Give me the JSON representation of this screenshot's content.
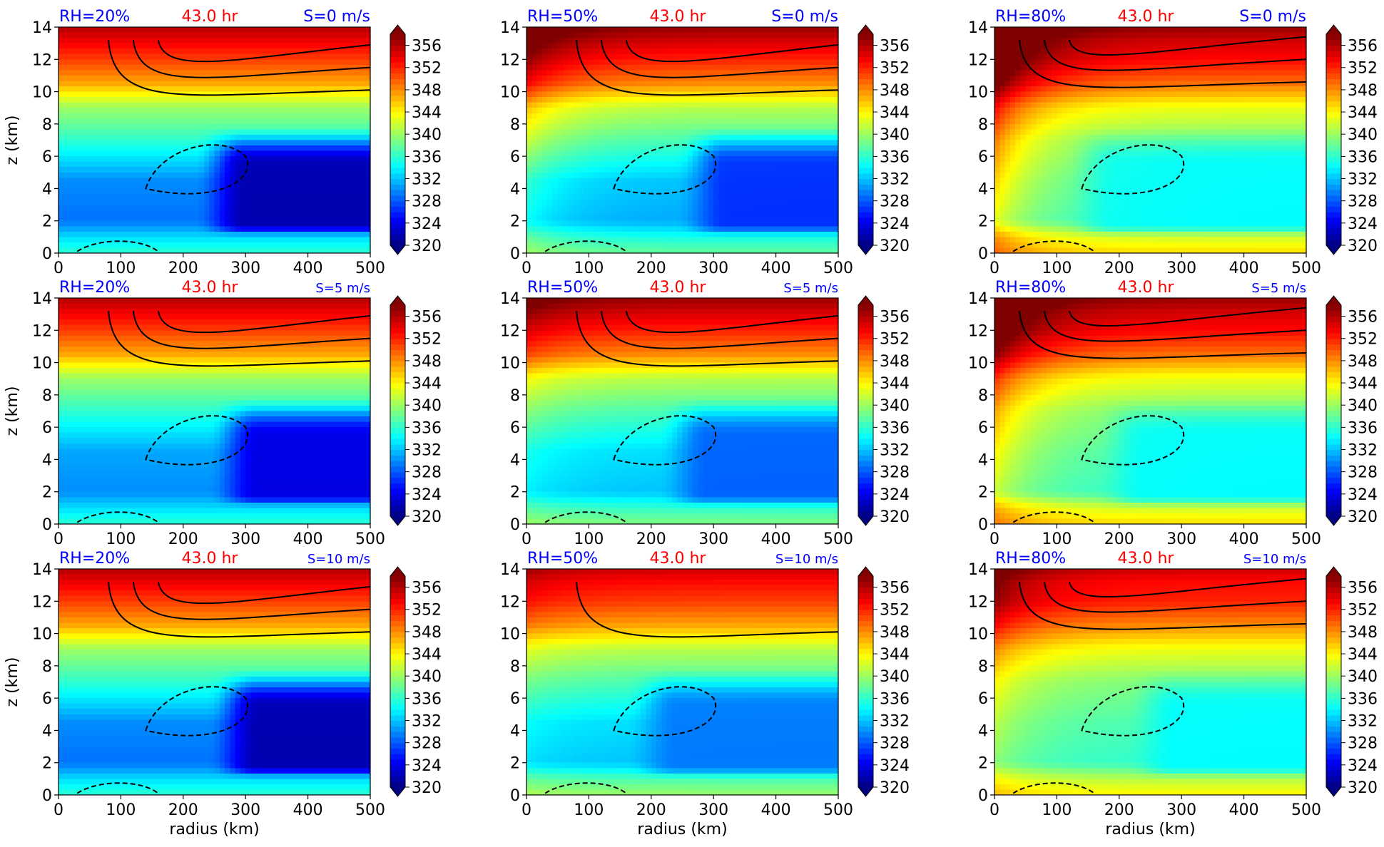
{
  "colors": {
    "rh_label": "#0000ff",
    "time_label": "#ff0000",
    "shear_label": "#0000ff",
    "contour": "#000000"
  },
  "colormap": "jet",
  "chart_data": [
    {
      "type": "heatmap",
      "rh": "RH=20%",
      "time": "43.0 hr",
      "shear": "S=0 m/s",
      "xlabel": "",
      "ylabel": "z (km)",
      "xlim": [
        0,
        500
      ],
      "ylim": [
        0,
        14
      ],
      "xticks": [
        0,
        100,
        200,
        300,
        400,
        500
      ],
      "yticks": [
        0,
        2,
        4,
        6,
        8,
        10,
        12,
        14
      ],
      "colorbar": {
        "min": 320,
        "max": 358,
        "ticks": [
          320,
          324,
          328,
          332,
          336,
          340,
          344,
          348,
          352,
          356
        ]
      },
      "field": {
        "surf": 336,
        "low": 329,
        "mid": 338,
        "upper": 349,
        "top": 356,
        "core_min": 321,
        "core_r": [
          260,
          500
        ],
        "inner_warm": 0
      }
    },
    {
      "type": "heatmap",
      "rh": "RH=50%",
      "time": "43.0 hr",
      "shear": "S=0 m/s",
      "xlabel": "",
      "ylabel": "",
      "xlim": [
        0,
        500
      ],
      "ylim": [
        0,
        14
      ],
      "xticks": [
        0,
        100,
        200,
        300,
        400,
        500
      ],
      "yticks": [
        0,
        2,
        4,
        6,
        8,
        10,
        12,
        14
      ],
      "colorbar": {
        "min": 320,
        "max": 358,
        "ticks": [
          320,
          324,
          328,
          332,
          336,
          340,
          344,
          348,
          352,
          356
        ]
      },
      "field": {
        "surf": 338,
        "low": 331,
        "mid": 339,
        "upper": 350,
        "top": 357,
        "core_min": 326,
        "core_r": [
          280,
          500
        ],
        "inner_warm": 6
      }
    },
    {
      "type": "heatmap",
      "rh": "RH=80%",
      "time": "43.0 hr",
      "shear": "S=0 m/s",
      "xlabel": "",
      "ylabel": "",
      "xlim": [
        0,
        500
      ],
      "ylim": [
        0,
        14
      ],
      "xticks": [
        0,
        100,
        200,
        300,
        400,
        500
      ],
      "yticks": [
        0,
        2,
        4,
        6,
        8,
        10,
        12,
        14
      ],
      "colorbar": {
        "min": 320,
        "max": 358,
        "ticks": [
          320,
          324,
          328,
          332,
          336,
          340,
          344,
          348,
          352,
          356
        ]
      },
      "field": {
        "surf": 345,
        "low": 336,
        "mid": 341,
        "upper": 351,
        "top": 357,
        "core_min": 334,
        "core_r": [
          150,
          500
        ],
        "inner_warm": 12
      }
    },
    {
      "type": "heatmap",
      "rh": "RH=20%",
      "time": "43.0 hr",
      "shear": "S=5 m/s",
      "xlabel": "",
      "ylabel": "z (km)",
      "xlim": [
        0,
        500
      ],
      "ylim": [
        0,
        14
      ],
      "xticks": [
        0,
        100,
        200,
        300,
        400,
        500
      ],
      "yticks": [
        0,
        2,
        4,
        6,
        8,
        10,
        12,
        14
      ],
      "colorbar": {
        "min": 320,
        "max": 358,
        "ticks": [
          320,
          324,
          328,
          332,
          336,
          340,
          344,
          348,
          352,
          356
        ]
      },
      "field": {
        "surf": 336,
        "low": 330,
        "mid": 338,
        "upper": 349,
        "top": 356,
        "core_min": 323,
        "core_r": [
          280,
          500
        ],
        "inner_warm": 0
      }
    },
    {
      "type": "heatmap",
      "rh": "RH=50%",
      "time": "43.0 hr",
      "shear": "S=5 m/s",
      "xlabel": "",
      "ylabel": "",
      "xlim": [
        0,
        500
      ],
      "ylim": [
        0,
        14
      ],
      "xticks": [
        0,
        100,
        200,
        300,
        400,
        500
      ],
      "yticks": [
        0,
        2,
        4,
        6,
        8,
        10,
        12,
        14
      ],
      "colorbar": {
        "min": 320,
        "max": 358,
        "ticks": [
          320,
          324,
          328,
          332,
          336,
          340,
          344,
          348,
          352,
          356
        ]
      },
      "field": {
        "surf": 339,
        "low": 332,
        "mid": 339,
        "upper": 350,
        "top": 357,
        "core_min": 328,
        "core_r": [
          250,
          500
        ],
        "inner_warm": 3
      }
    },
    {
      "type": "heatmap",
      "rh": "RH=80%",
      "time": "43.0 hr",
      "shear": "S=5 m/s",
      "xlabel": "",
      "ylabel": "",
      "xlim": [
        0,
        500
      ],
      "ylim": [
        0,
        14
      ],
      "xticks": [
        0,
        100,
        200,
        300,
        400,
        500
      ],
      "yticks": [
        0,
        2,
        4,
        6,
        8,
        10,
        12,
        14
      ],
      "colorbar": {
        "min": 320,
        "max": 358,
        "ticks": [
          320,
          324,
          328,
          332,
          336,
          340,
          344,
          348,
          352,
          356
        ]
      },
      "field": {
        "surf": 345,
        "low": 336,
        "mid": 341,
        "upper": 351,
        "top": 357,
        "core_min": 334,
        "core_r": [
          200,
          500
        ],
        "inner_warm": 10
      }
    },
    {
      "type": "heatmap",
      "rh": "RH=20%",
      "time": "43.0 hr",
      "shear": "S=10 m/s",
      "xlabel": "radius (km)",
      "ylabel": "z (km)",
      "xlim": [
        0,
        500
      ],
      "ylim": [
        0,
        14
      ],
      "xticks": [
        0,
        100,
        200,
        300,
        400,
        500
      ],
      "yticks": [
        0,
        2,
        4,
        6,
        8,
        10,
        12,
        14
      ],
      "colorbar": {
        "min": 320,
        "max": 358,
        "ticks": [
          320,
          324,
          328,
          332,
          336,
          340,
          344,
          348,
          352,
          356
        ]
      },
      "field": {
        "surf": 336,
        "low": 329,
        "mid": 338,
        "upper": 349,
        "top": 356,
        "core_min": 321,
        "core_r": [
          280,
          500
        ],
        "inner_warm": 0
      }
    },
    {
      "type": "heatmap",
      "rh": "RH=50%",
      "time": "43.0 hr",
      "shear": "S=10 m/s",
      "xlabel": "radius (km)",
      "ylabel": "",
      "xlim": [
        0,
        500
      ],
      "ylim": [
        0,
        14
      ],
      "xticks": [
        0,
        100,
        200,
        300,
        400,
        500
      ],
      "yticks": [
        0,
        2,
        4,
        6,
        8,
        10,
        12,
        14
      ],
      "colorbar": {
        "min": 320,
        "max": 358,
        "ticks": [
          320,
          324,
          328,
          332,
          336,
          340,
          344,
          348,
          352,
          356
        ]
      },
      "field": {
        "surf": 340,
        "low": 332,
        "mid": 339,
        "upper": 349,
        "top": 355,
        "core_min": 329,
        "core_r": [
          200,
          500
        ],
        "inner_warm": 2
      }
    },
    {
      "type": "heatmap",
      "rh": "RH=80%",
      "time": "43.0 hr",
      "shear": "S=10 m/s",
      "xlabel": "radius (km)",
      "ylabel": "",
      "xlim": [
        0,
        500
      ],
      "ylim": [
        0,
        14
      ],
      "xticks": [
        0,
        100,
        200,
        300,
        400,
        500
      ],
      "yticks": [
        0,
        2,
        4,
        6,
        8,
        10,
        12,
        14
      ],
      "colorbar": {
        "min": 320,
        "max": 358,
        "ticks": [
          320,
          324,
          328,
          332,
          336,
          340,
          344,
          348,
          352,
          356
        ]
      },
      "field": {
        "surf": 344,
        "low": 336,
        "mid": 341,
        "upper": 350,
        "top": 355,
        "core_min": 334,
        "core_r": [
          250,
          500
        ],
        "inner_warm": 6
      }
    }
  ]
}
